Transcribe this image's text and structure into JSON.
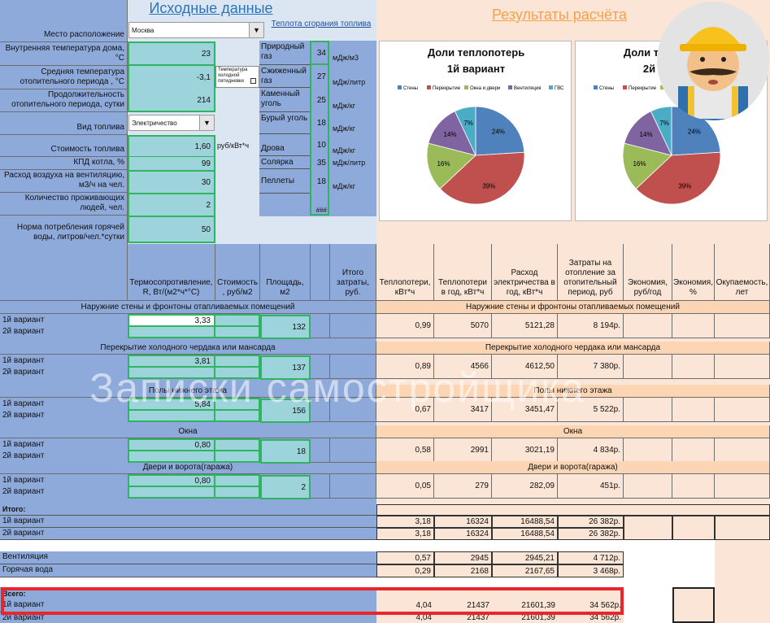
{
  "left_title": "Исходные данные",
  "heat_link": "Теплота сгорания топлива",
  "right_title": "Результаты расчёта",
  "inputs": {
    "location_label": "Место расположение",
    "location_value": "Москва",
    "inner_temp_label": "Внутренняя температура дома, °С",
    "inner_temp_value": "23",
    "avg_temp_label": "Средняя температура отопительного периода , °С",
    "avg_temp_value": "-3,1",
    "five_day_label": "Температура холодной пятидневки",
    "duration_label": "Продолжительность отопительного периода, сутки",
    "duration_value": "214",
    "fuel_label": "Вид топлива",
    "fuel_value": "Электричество",
    "fuel_cost_label": "Стоимость топлива",
    "fuel_cost_value": "1,60",
    "fuel_cost_unit": "руб/кВт*ч",
    "kpd_label": "КПД котла, %",
    "kpd_value": "99",
    "air_label": "Расход воздуха на вентиляцию, м3/ч на чел.",
    "air_value": "30",
    "people_label": "Количество проживающих людей, чел.",
    "people_value": "2",
    "water_label": "Норма потребления горячей воды, литров/чел.*сутки",
    "water_value": "50"
  },
  "fuels": [
    {
      "name": "Природный газ",
      "value": "34",
      "unit": "мДж/м3"
    },
    {
      "name": "Сжиженный газ",
      "value": "27",
      "unit": "мДж/литр"
    },
    {
      "name": "Каменный уголь",
      "value": "25",
      "unit": "мДж/кг"
    },
    {
      "name": "Бурый уголь",
      "value": "18",
      "unit": "мДж/кг"
    },
    {
      "name": "Дрова",
      "value": "10",
      "unit": "мДж/кг"
    },
    {
      "name": "Солярка",
      "value": "35",
      "unit": "мДж/литр"
    },
    {
      "name": "Пеллеты",
      "value": "18",
      "unit": "мДж/кг"
    },
    {
      "name": "",
      "value": "###",
      "unit": ""
    }
  ],
  "charts": [
    {
      "title": "Доли теплопотерь",
      "subtitle": "1й вариант"
    },
    {
      "title": "Доли теплопотерь",
      "subtitle": "2й вариант"
    }
  ],
  "chart_data": [
    {
      "type": "pie",
      "title": "Доли теплопотерь 1й вариант",
      "categories": [
        "Стены",
        "Перекрытие",
        "Окна и двери",
        "Вентиляция",
        "ГВС"
      ],
      "values": [
        24,
        39,
        16,
        14,
        7
      ],
      "labels": [
        "24%",
        "39%",
        "16%",
        "14%",
        "7%"
      ],
      "colors": [
        "#4f81bd",
        "#c0504d",
        "#9bbb59",
        "#8064a2",
        "#4bacc6"
      ],
      "legend": "top"
    },
    {
      "type": "pie",
      "title": "Доли теплопотерь 2й вариант",
      "categories": [
        "Стены",
        "Перекрытие",
        "Окна и двери",
        "Вентиляция",
        "ГВС"
      ],
      "values": [
        24,
        39,
        16,
        14,
        7
      ],
      "labels": [
        "24%",
        "39%",
        "16%",
        "14%",
        "7%"
      ],
      "colors": [
        "#4f81bd",
        "#c0504d",
        "#9bbb59",
        "#8064a2",
        "#4bacc6"
      ],
      "legend": "top"
    }
  ],
  "table_headers_left": [
    "Термосопротивление, R, Вт/(м2*ч*°С)",
    "Стоимость , руб/м2",
    "Площадь, м2",
    "Итого затраты, руб."
  ],
  "table_headers_right": [
    "Теплопотери, кВт*ч",
    "Теплопотери в год, кВт*ч",
    "Расход электричества в год, кВт*ч",
    "Затраты на отопление за отопительный период, руб",
    "Экономия, руб/год",
    "Экономия, %",
    "Окупаемость, лет"
  ],
  "sections": [
    {
      "title": "Наружние стены и фронтоны отапливаемых помещений",
      "v1": "1й вариант",
      "v2": "2й вариант",
      "r": "3,33",
      "area": "132",
      "loss": "0,99",
      "year": "5070",
      "elec": "5121,28",
      "cost": "8 194р."
    },
    {
      "title": "Перекрытие холодного чердака или мансарда",
      "v1": "1й вариант",
      "v2": "2й вариант",
      "r": "3,81",
      "area": "137",
      "loss": "0,89",
      "year": "4566",
      "elec": "4612,50",
      "cost": "7 380р."
    },
    {
      "title": "Полы нижнего этажа",
      "v1": "1й вариант",
      "v2": "2й вариант",
      "r": "5,84",
      "area": "156",
      "loss": "0,67",
      "year": "3417",
      "elec": "3451,47",
      "cost": "5 522р."
    },
    {
      "title": "Окна",
      "v1": "1й вариант",
      "v2": "2й вариант",
      "r": "0,80",
      "area": "18",
      "loss": "0,58",
      "year": "2991",
      "elec": "3021,19",
      "cost": "4 834р."
    },
    {
      "title": "Двери и ворота(гаража)",
      "v1": "1й вариант",
      "v2": "2й вариант",
      "r": "0,80",
      "area": "2",
      "loss": "0,05",
      "year": "279",
      "elec": "282,09",
      "cost": "451р."
    }
  ],
  "totals": {
    "itogo_label": "Итого:",
    "rows": [
      {
        "label": "1й вариант",
        "loss": "3,18",
        "year": "16324",
        "elec": "16488,54",
        "cost": "26 382р."
      },
      {
        "label": "2й вариант",
        "loss": "3,18",
        "year": "16324",
        "elec": "16488,54",
        "cost": "26 382р."
      }
    ],
    "vent": {
      "label": "Вентиляция",
      "loss": "0,57",
      "year": "2945",
      "elec": "2945,21",
      "cost": "4 712р."
    },
    "water": {
      "label": "Горячая вода",
      "loss": "0,29",
      "year": "2168",
      "elec": "2167,65",
      "cost": "3 468р."
    },
    "vsego_label": "Всего:",
    "vsego_rows": [
      {
        "label": "1й вариант",
        "loss": "4,04",
        "year": "21437",
        "elec": "21601,39",
        "cost": "34 562р."
      },
      {
        "label": "2й вариант",
        "loss": "4,04",
        "year": "21437",
        "elec": "21601,39",
        "cost": "34 562р."
      }
    ]
  },
  "watermark": "Записки самостройщика"
}
